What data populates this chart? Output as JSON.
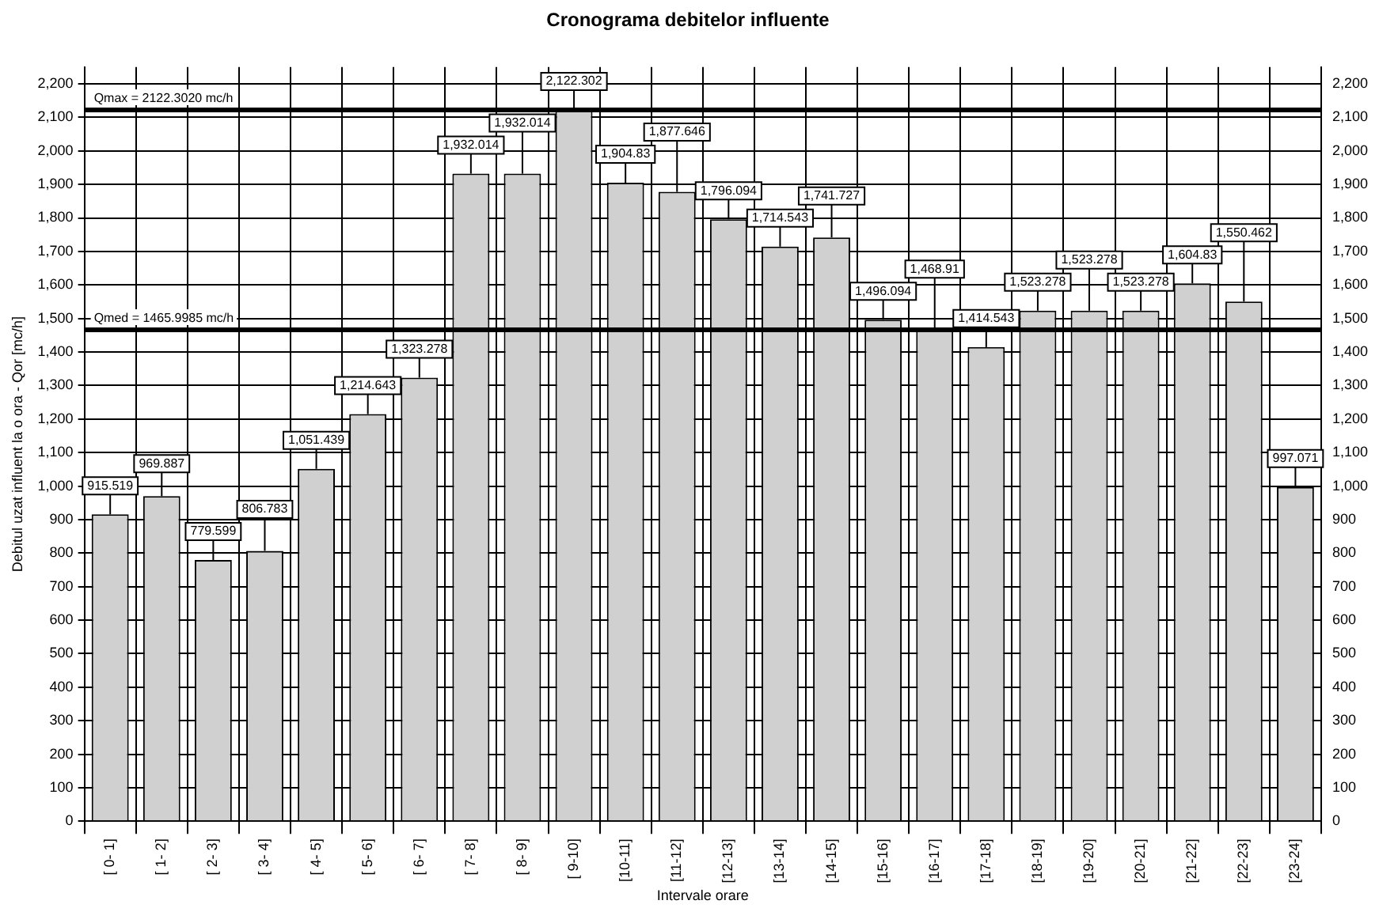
{
  "chart_data": {
    "type": "bar",
    "title": "Cronograma debitelor influente",
    "xlabel": "Intervale orare",
    "ylabel": "Debitul uzat influent la o ora - Qor [mc/h]",
    "categories": [
      "[ 0- 1]",
      "[ 1- 2]",
      "[ 2- 3]",
      "[ 3- 4]",
      "[ 4- 5]",
      "[ 5- 6]",
      "[ 6- 7]",
      "[ 7- 8]",
      "[ 8- 9]",
      "[ 9-10]",
      "[10-11]",
      "[11-12]",
      "[12-13]",
      "[13-14]",
      "[14-15]",
      "[15-16]",
      "[16-17]",
      "[17-18]",
      "[18-19]",
      "[19-20]",
      "[20-21]",
      "[21-22]",
      "[22-23]",
      "[23-24]"
    ],
    "values": [
      915.519,
      969.887,
      779.599,
      806.783,
      1051.439,
      1214.643,
      1323.278,
      1932.014,
      1932.014,
      2122.302,
      1904.83,
      1877.646,
      1796.094,
      1714.543,
      1741.727,
      1496.094,
      1468.91,
      1414.543,
      1523.278,
      1523.278,
      1523.278,
      1604.83,
      1550.462,
      997.071
    ],
    "value_labels": [
      "915.519",
      "969.887",
      "779.599",
      "806.783",
      "1,051.439",
      "1,214.643",
      "1,323.278",
      "1,932.014",
      "1,932.014",
      "2,122.302",
      "1,904.83",
      "1,877.646",
      "1,796.094",
      "1,714.543",
      "1,741.727",
      "1,496.094",
      "1,468.91",
      "1,414.543",
      "1,523.278",
      "1,523.278",
      "1,523.278",
      "1,604.83",
      "1,550.462",
      "997.071"
    ],
    "color": "#d0d0d0",
    "grid": true,
    "legend": false,
    "ylim": [
      0,
      2250
    ],
    "yticks": [
      0,
      100,
      200,
      300,
      400,
      500,
      600,
      700,
      800,
      900,
      {
        "value": 1000,
        "label": "1,000"
      },
      {
        "value": 1100,
        "label": "1,100"
      },
      {
        "value": 1200,
        "label": "1,200"
      },
      {
        "value": 1300,
        "label": "1,300"
      },
      {
        "value": 1400,
        "label": "1,400"
      },
      {
        "value": 1500,
        "label": "1,500"
      },
      {
        "value": 1600,
        "label": "1,600"
      },
      {
        "value": 1700,
        "label": "1,700"
      },
      {
        "value": 1800,
        "label": "1,800"
      },
      {
        "value": 1900,
        "label": "1,900"
      },
      {
        "value": 2000,
        "label": "2,000"
      },
      {
        "value": 2100,
        "label": "2,100"
      },
      {
        "value": 2200,
        "label": "2,200"
      }
    ],
    "y2lim": [
      0,
      2250
    ],
    "y2ticks": [
      0,
      100,
      200,
      300,
      400,
      500,
      600,
      700,
      800,
      900,
      {
        "value": 1000,
        "label": "1,000"
      },
      {
        "value": 1100,
        "label": "1,100"
      },
      {
        "value": 1200,
        "label": "1,200"
      },
      {
        "value": 1300,
        "label": "1,300"
      },
      {
        "value": 1400,
        "label": "1,400"
      },
      {
        "value": 1500,
        "label": "1,500"
      },
      {
        "value": 1600,
        "label": "1,600"
      },
      {
        "value": 1700,
        "label": "1,700"
      },
      {
        "value": 1800,
        "label": "1,800"
      },
      {
        "value": 1900,
        "label": "1,900"
      },
      {
        "value": 2000,
        "label": "2,000"
      },
      {
        "value": 2100,
        "label": "2,100"
      },
      {
        "value": 2200,
        "label": "2,200"
      }
    ],
    "ref_lines": [
      {
        "axis": "y",
        "value": 2122.302,
        "label": "Qmax = 2122.3020 mc/h",
        "color": "#000000"
      },
      {
        "axis": "y",
        "value": 1465.9985,
        "label": "Qmed = 1465.9985 mc/h",
        "color": "#000000"
      }
    ]
  }
}
